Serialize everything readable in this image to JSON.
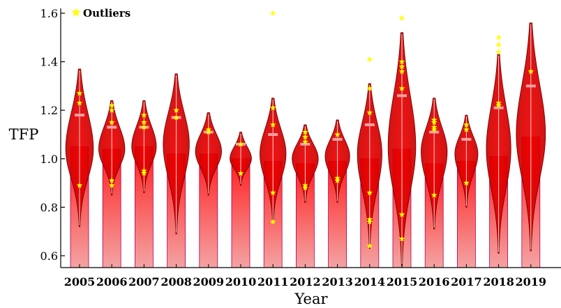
{
  "chart_data": {
    "type": "violin",
    "xlabel": "Year",
    "ylabel": "TFP",
    "ylim": [
      0.55,
      1.62
    ],
    "yticks": [
      0.6,
      0.8,
      1.0,
      1.2,
      1.4,
      1.6
    ],
    "ytick_labels": [
      "0.6",
      "0.8",
      "1.0",
      "1.2",
      "1.4",
      "1.6"
    ],
    "legend": {
      "label": "Outliers",
      "position": "top-left"
    },
    "colors": {
      "violin_fill": "#d80000",
      "violin_stroke": "#7a0000",
      "bar_top": "#ff2a2a",
      "bar_bottom": "#f4a3a3",
      "bar_stroke": "#b0005a",
      "whisker": "#ffd0d0",
      "median": "#f3a0a0",
      "outlier": "#ffff00"
    },
    "categories": [
      "2005",
      "2006",
      "2007",
      "2008",
      "2009",
      "2010",
      "2011",
      "2012",
      "2013",
      "2014",
      "2015",
      "2016",
      "2017",
      "2018",
      "2019"
    ],
    "series": [
      {
        "year": "2005",
        "min": 0.72,
        "max": 1.37,
        "mode": 1.04,
        "mean": 1.05,
        "median": 1.18,
        "width": 0.9,
        "outliers": [
          1.27,
          1.23,
          0.89
        ]
      },
      {
        "year": "2006",
        "min": 0.85,
        "max": 1.24,
        "mode": 1.04,
        "mean": 1.04,
        "median": 1.13,
        "width": 0.85,
        "outliers": [
          1.22,
          1.2,
          1.15,
          0.91,
          0.89
        ]
      },
      {
        "year": "2007",
        "min": 0.86,
        "max": 1.24,
        "mode": 1.05,
        "mean": 1.05,
        "median": 1.13,
        "width": 0.8,
        "outliers": [
          1.18,
          1.15,
          1.13,
          0.95,
          0.94
        ]
      },
      {
        "year": "2008",
        "min": 0.69,
        "max": 1.35,
        "mode": 1.06,
        "mean": 1.02,
        "median": 1.17,
        "width": 0.85,
        "outliers": [
          1.2,
          1.17
        ]
      },
      {
        "year": "2009",
        "min": 0.85,
        "max": 1.19,
        "mode": 1.03,
        "mean": 1.02,
        "median": 1.11,
        "width": 0.85,
        "outliers": [
          1.12,
          1.11
        ]
      },
      {
        "year": "2010",
        "min": 0.89,
        "max": 1.11,
        "mode": 1.0,
        "mean": 1.0,
        "median": 1.06,
        "width": 0.7,
        "outliers": [
          1.06,
          0.94
        ]
      },
      {
        "year": "2011",
        "min": 0.74,
        "max": 1.25,
        "mode": 1.02,
        "mean": 0.99,
        "median": 1.1,
        "width": 0.85,
        "outliers": [
          1.6,
          1.21,
          1.14,
          0.86,
          0.74
        ]
      },
      {
        "year": "2012",
        "min": 0.82,
        "max": 1.14,
        "mode": 1.0,
        "mean": 0.98,
        "median": 1.06,
        "width": 0.85,
        "outliers": [
          1.11,
          1.09,
          1.07,
          0.89,
          0.88
        ]
      },
      {
        "year": "2013",
        "min": 0.82,
        "max": 1.16,
        "mode": 1.01,
        "mean": 0.99,
        "median": 1.08,
        "width": 0.8,
        "outliers": [
          1.1,
          0.92,
          0.91
        ]
      },
      {
        "year": "2014",
        "min": 0.63,
        "max": 1.31,
        "mode": 1.02,
        "mean": 1.0,
        "median": 1.14,
        "width": 0.8,
        "outliers": [
          1.41,
          1.29,
          1.19,
          0.86,
          0.75,
          0.74,
          0.64
        ]
      },
      {
        "year": "2015",
        "min": 0.56,
        "max": 1.52,
        "mode": 1.05,
        "mean": 1.04,
        "median": 1.26,
        "width": 0.9,
        "outliers": [
          1.58,
          1.4,
          1.38,
          1.36,
          1.29,
          0.77,
          0.67
        ]
      },
      {
        "year": "2016",
        "min": 0.71,
        "max": 1.25,
        "mode": 1.03,
        "mean": 0.98,
        "median": 1.11,
        "width": 0.85,
        "outliers": [
          1.16,
          1.15,
          1.13,
          1.12,
          0.85
        ]
      },
      {
        "year": "2017",
        "min": 0.8,
        "max": 1.18,
        "mode": 1.02,
        "mean": 0.99,
        "median": 1.08,
        "width": 0.75,
        "outliers": [
          1.14,
          1.12,
          0.9
        ]
      },
      {
        "year": "2018",
        "min": 0.61,
        "max": 1.43,
        "mode": 1.04,
        "mean": 1.01,
        "median": 1.21,
        "width": 0.8,
        "outliers": [
          1.5,
          1.47,
          1.44,
          1.23,
          1.22
        ]
      },
      {
        "year": "2019",
        "min": 0.62,
        "max": 1.56,
        "mode": 1.1,
        "mean": 1.09,
        "median": 1.3,
        "width": 0.95,
        "outliers": [
          1.36
        ]
      }
    ]
  }
}
